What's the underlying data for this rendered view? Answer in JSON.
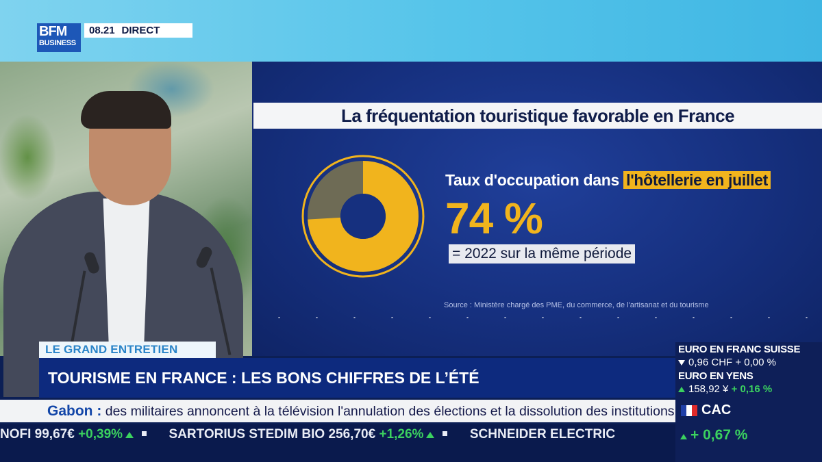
{
  "broadcast": {
    "logo_line1": "BFM",
    "logo_line2": "BUSINESS",
    "time": "08.21",
    "live_label": "DIRECT"
  },
  "graphic": {
    "title": "La fréquentation touristique favorable en France",
    "stat_label_prefix": "Taux d'occupation dans ",
    "stat_label_highlight": "l'hôtellerie en juillet",
    "stat_value": "74 %",
    "stat_note": "= 2022 sur la même période",
    "source": "Source : Ministère chargé des PME, du commerce, de l'artisanat et du tourisme",
    "donut_fraction": 0.74,
    "colors": {
      "accent": "#f1b41d",
      "panel": "#16307f",
      "remainder": "#6e6b55"
    }
  },
  "lower_third": {
    "segment": "LE GRAND ENTRETIEN",
    "headline": "TOURISME EN FRANCE : LES BONS CHIFFRES DE L’ÉTÉ"
  },
  "news_ticker": {
    "topic": "Gabon :",
    "text": " des militaires annoncent à la télévision l'annulation des élections et la dissolution des institutions."
  },
  "stock_ticker": [
    {
      "name": "NOFI",
      "price": "99,67€",
      "change": "+0,39%"
    },
    {
      "name": "SARTORIUS STEDIM BIO",
      "price": "256,70€",
      "change": "+1,26%"
    },
    {
      "name": "SCHNEIDER ELECTRIC",
      "price": "",
      "change": ""
    }
  ],
  "markets": {
    "fx": [
      {
        "name": "EURO EN FRANC SUISSE",
        "value": "0,96 CHF",
        "change": "+ 0,00 %"
      },
      {
        "name": "EURO EN YENS",
        "value": "158,92 ¥",
        "change": "+ 0,16 %"
      }
    ],
    "index_name": "CAC",
    "index_change": "+ 0,67 %"
  }
}
